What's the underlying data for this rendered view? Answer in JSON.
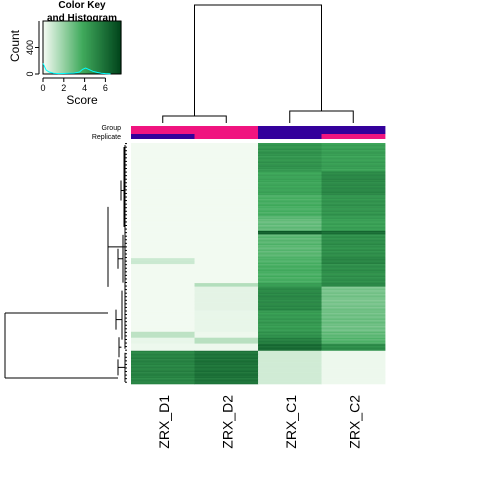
{
  "chart_data": {
    "type": "heatmap",
    "columns": [
      "ZRX_D1",
      "ZRX_D2",
      "ZRX_C1",
      "ZRX_C2"
    ],
    "column_annotations": {
      "labels": [
        "Group",
        "Replicate"
      ],
      "group_colors": [
        "#f0147f",
        "#f0147f",
        "#33009b",
        "#33009b"
      ],
      "replicate_colors": [
        "#33009b",
        "#f0147f",
        "#33009b",
        "#f0147f"
      ]
    },
    "color_scale": {
      "low": "#f7fcf5",
      "mid": "#41ab5d",
      "high": "#00441b",
      "min": 0,
      "max": 7.5
    },
    "row_blocks": [
      {
        "rows": 24,
        "values": [
          0.1,
          0.1,
          4.6,
          4.2
        ]
      },
      {
        "rows": 20,
        "values": [
          0.1,
          0.1,
          4.0,
          5.0
        ]
      },
      {
        "rows": 18,
        "values": [
          0.1,
          0.1,
          3.6,
          4.6
        ]
      },
      {
        "rows": 12,
        "values": [
          0.1,
          0.1,
          3.0,
          4.2
        ]
      },
      {
        "rows": 3,
        "values": [
          0.1,
          0.1,
          6.5,
          6.0
        ]
      },
      {
        "rows": 20,
        "values": [
          0.1,
          0.1,
          3.2,
          4.8
        ]
      },
      {
        "rows": 5,
        "values": [
          0.9,
          0.1,
          3.5,
          5.2
        ]
      },
      {
        "rows": 16,
        "values": [
          0.1,
          0.1,
          3.6,
          4.8
        ]
      },
      {
        "rows": 3,
        "values": [
          0.1,
          1.4,
          4.2,
          5.0
        ]
      },
      {
        "rows": 20,
        "values": [
          0.1,
          0.4,
          5.0,
          2.6
        ]
      },
      {
        "rows": 18,
        "values": [
          0.1,
          0.3,
          4.4,
          2.8
        ]
      },
      {
        "rows": 5,
        "values": [
          1.2,
          0.2,
          4.6,
          3.0
        ]
      },
      {
        "rows": 5,
        "values": [
          0.3,
          1.3,
          5.4,
          3.4
        ]
      },
      {
        "rows": 6,
        "values": [
          0.2,
          0.2,
          6.0,
          4.8
        ]
      },
      {
        "rows": 28,
        "values": [
          5.2,
          5.8,
          0.8,
          0.2
        ]
      }
    ],
    "color_key": {
      "title": "Color Key\nand Histogram",
      "xlabel": "Score",
      "ylabel": "Count",
      "xticks": [
        "0",
        "2",
        "4",
        "6"
      ],
      "yticks": [
        "0",
        "400"
      ],
      "xlim": [
        0,
        7.5
      ],
      "ylim": [
        0,
        800
      ],
      "histogram": [
        [
          0.0,
          160
        ],
        [
          0.3,
          60
        ],
        [
          0.6,
          30
        ],
        [
          1.0,
          12
        ],
        [
          1.5,
          6
        ],
        [
          2.0,
          8
        ],
        [
          2.5,
          10
        ],
        [
          3.0,
          14
        ],
        [
          3.5,
          30
        ],
        [
          3.8,
          70
        ],
        [
          4.1,
          90
        ],
        [
          4.4,
          70
        ],
        [
          4.8,
          40
        ],
        [
          5.2,
          24
        ],
        [
          5.6,
          12
        ],
        [
          6.0,
          6
        ],
        [
          6.5,
          2
        ]
      ]
    }
  }
}
